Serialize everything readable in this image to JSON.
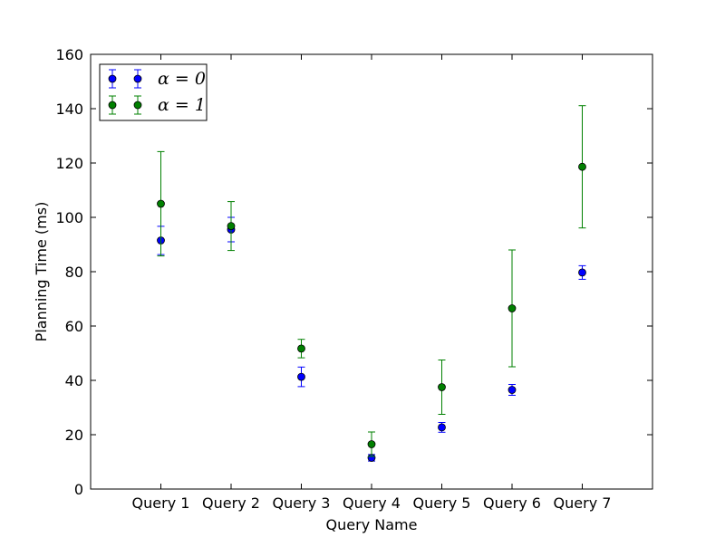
{
  "chart_data": {
    "type": "scatter",
    "title": "",
    "xlabel": "Query Name",
    "ylabel": "Planning Time (ms)",
    "categories": [
      "Query 1",
      "Query 2",
      "Query 3",
      "Query 4",
      "Query 5",
      "Query 6",
      "Query 7"
    ],
    "ylim": [
      0,
      160
    ],
    "yticks": [
      0,
      20,
      40,
      60,
      80,
      100,
      120,
      140,
      160
    ],
    "grid": false,
    "legend_position": "top-left",
    "error_bars": true,
    "series": [
      {
        "name": "α = 0",
        "color": "#0000ff",
        "values": [
          91.5,
          95.5,
          41.3,
          11.5,
          22.7,
          36.5,
          79.7
        ],
        "errors": [
          5.2,
          4.5,
          3.6,
          1.2,
          1.8,
          2.0,
          2.5
        ]
      },
      {
        "name": "α = 1",
        "color": "#008000",
        "values": [
          105.0,
          96.8,
          51.7,
          16.5,
          37.5,
          66.5,
          118.6
        ],
        "errors": [
          19.2,
          9.0,
          3.4,
          4.5,
          10.0,
          21.5,
          22.5
        ]
      }
    ]
  }
}
